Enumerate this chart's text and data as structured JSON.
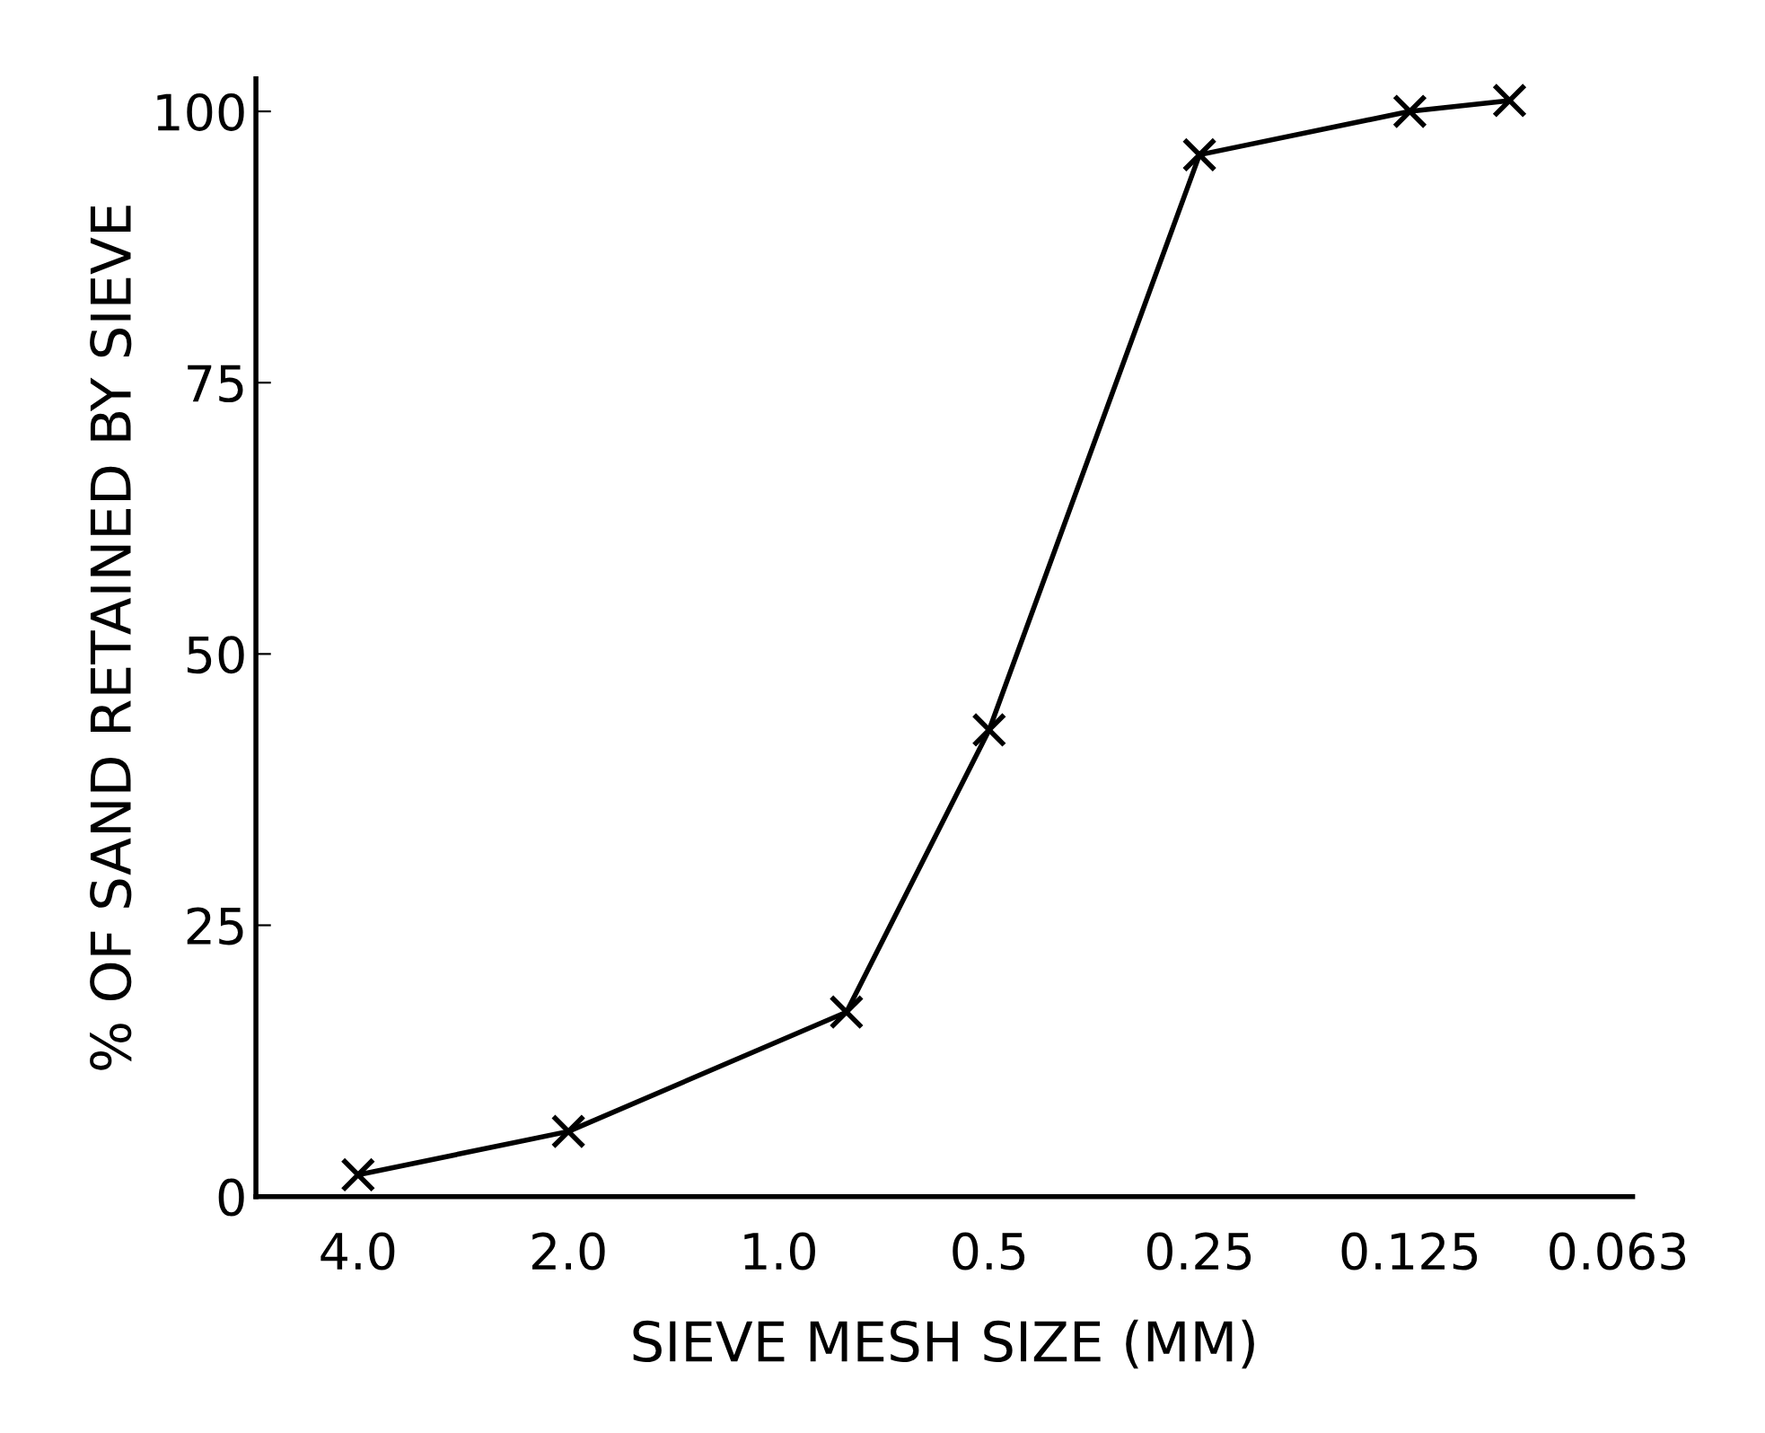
{
  "chart_data": {
    "type": "line",
    "xlabel": "SIEVE MESH SIZE (MM)",
    "ylabel": "% OF SAND RETAINED BY SIEVE",
    "x": [
      4.0,
      2.0,
      0.8,
      0.5,
      0.25,
      0.125,
      0.09
    ],
    "values": [
      2,
      6,
      17,
      43,
      96,
      100,
      101
    ],
    "color": "#000000",
    "marker": "cross",
    "line_style": "solid",
    "log": "x",
    "xlim": [
      5.6,
      0.06
    ],
    "xticks": [
      {
        "value": 4.0,
        "label": "4.0"
      },
      {
        "value": 2.0,
        "label": "2.0"
      },
      {
        "value": 1.0,
        "label": "1.0"
      },
      0.5,
      0.25,
      0.125,
      0.063
    ],
    "ylim": [
      0,
      103
    ],
    "yticks": [
      0,
      25,
      50,
      75,
      100
    ],
    "grid": false,
    "legend": false
  }
}
